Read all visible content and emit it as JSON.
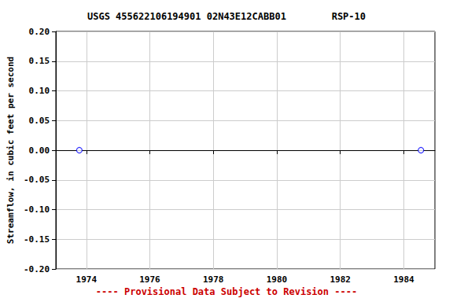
{
  "chart_data": {
    "type": "scatter",
    "title": "USGS 455622106194901 02N43E12CABB01        RSP-10",
    "y_label": "Streamflow, in cubic feet per second",
    "annotations": [
      "---- Provisional Data Subject to Revision ----"
    ],
    "x": [
      1973.78,
      1984.54
    ],
    "values": [
      0,
      0
    ],
    "color": "#0000ff",
    "marker": "circle_open",
    "xlim": [
      1973.04,
      1984.98
    ],
    "xticks": [
      1974,
      1976,
      1978,
      1980,
      1982,
      1984
    ],
    "ylim": [
      -0.2,
      0.2
    ],
    "yticks": [
      {
        "value": -0.2,
        "label": "-0.20"
      },
      -0.15,
      {
        "value": -0.1,
        "label": "-0.10"
      },
      -0.05,
      {
        "value": 0,
        "label": "0.00"
      },
      0.05,
      {
        "value": 0.1,
        "label": "0.10"
      },
      0.15,
      {
        "value": 0.2,
        "label": "0.20"
      }
    ],
    "grid": true
  }
}
